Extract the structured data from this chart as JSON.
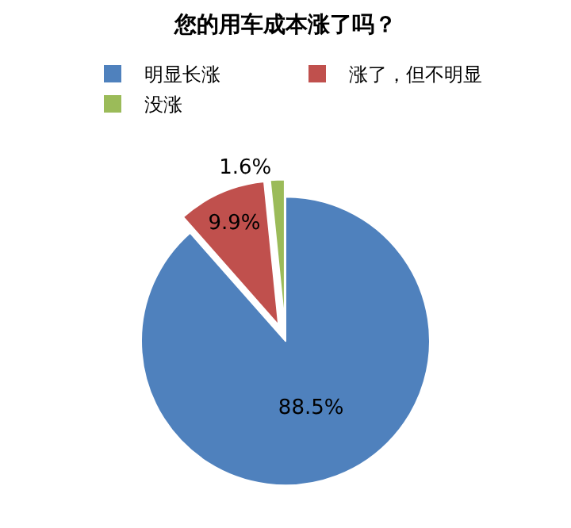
{
  "chart_data": {
    "type": "pie",
    "title": "您的用车成本涨了吗？",
    "categories": [
      "明显长涨",
      "涨了，但不明显",
      "没涨"
    ],
    "values": [
      88.5,
      9.9,
      1.6
    ],
    "colors": [
      "#4f81bd",
      "#c0504d",
      "#9bbb59"
    ],
    "value_labels": [
      "88.5%",
      "9.9%",
      "1.6%"
    ],
    "legend": "top"
  }
}
